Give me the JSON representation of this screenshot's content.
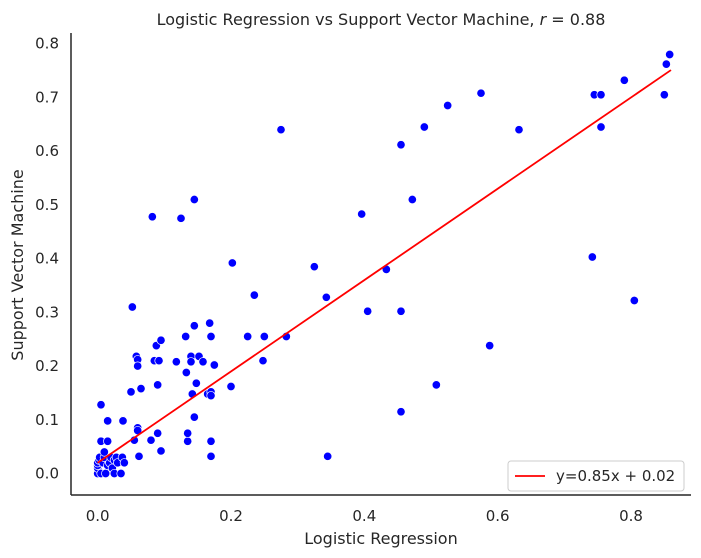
{
  "chart_data": {
    "type": "scatter",
    "title": "Logistic Regression vs Support Vector Machine, r = 0.88",
    "title_main": "Logistic Regression vs Support Vector Machine,",
    "title_stat_symbol": "r",
    "title_stat_value": " = 0.88",
    "xlabel": "Logistic Regression",
    "ylabel": "Support Vector Machine",
    "xlim": [
      -0.04,
      0.89
    ],
    "ylim": [
      -0.04,
      0.82
    ],
    "xticks": [
      0.0,
      0.2,
      0.4,
      0.6,
      0.8
    ],
    "xtick_labels": [
      "0.0",
      "0.2",
      "0.4",
      "0.6",
      "0.8"
    ],
    "yticks": [
      0.0,
      0.1,
      0.2,
      0.3,
      0.4,
      0.5,
      0.6,
      0.7,
      0.8
    ],
    "ytick_labels": [
      "0.0",
      "0.1",
      "0.2",
      "0.3",
      "0.4",
      "0.5",
      "0.6",
      "0.7",
      "0.8"
    ],
    "grid": false,
    "legend_position": "bottom-right",
    "point_color": "#0000ff",
    "line_color": "#ff0000",
    "fit_line": {
      "label": "y=0.85x + 0.02",
      "slope": 0.85,
      "intercept": 0.02,
      "x_range": [
        0.0,
        0.86
      ]
    },
    "points": [
      [
        0.0,
        0.0
      ],
      [
        0.0,
        0.01
      ],
      [
        0.0,
        0.015
      ],
      [
        0.0,
        0.02
      ],
      [
        0.002,
        0.025
      ],
      [
        0.003,
        0.03
      ],
      [
        0.005,
        0.0
      ],
      [
        0.005,
        0.06
      ],
      [
        0.005,
        0.128
      ],
      [
        0.008,
        0.02
      ],
      [
        0.01,
        0.03
      ],
      [
        0.01,
        0.04
      ],
      [
        0.012,
        0.0
      ],
      [
        0.015,
        0.015
      ],
      [
        0.015,
        0.06
      ],
      [
        0.015,
        0.098
      ],
      [
        0.018,
        0.02
      ],
      [
        0.02,
        0.03
      ],
      [
        0.022,
        0.01
      ],
      [
        0.025,
        0.025
      ],
      [
        0.025,
        0.0
      ],
      [
        0.028,
        0.03
      ],
      [
        0.03,
        0.02
      ],
      [
        0.035,
        0.0
      ],
      [
        0.037,
        0.03
      ],
      [
        0.038,
        0.098
      ],
      [
        0.04,
        0.02
      ],
      [
        0.05,
        0.152
      ],
      [
        0.052,
        0.31
      ],
      [
        0.055,
        0.062
      ],
      [
        0.058,
        0.218
      ],
      [
        0.06,
        0.212
      ],
      [
        0.06,
        0.2
      ],
      [
        0.06,
        0.085
      ],
      [
        0.06,
        0.08
      ],
      [
        0.062,
        0.032
      ],
      [
        0.065,
        0.158
      ],
      [
        0.08,
        0.062
      ],
      [
        0.082,
        0.478
      ],
      [
        0.085,
        0.21
      ],
      [
        0.088,
        0.238
      ],
      [
        0.09,
        0.165
      ],
      [
        0.09,
        0.075
      ],
      [
        0.092,
        0.21
      ],
      [
        0.095,
        0.248
      ],
      [
        0.095,
        0.042
      ],
      [
        0.118,
        0.208
      ],
      [
        0.125,
        0.475
      ],
      [
        0.132,
        0.255
      ],
      [
        0.133,
        0.188
      ],
      [
        0.135,
        0.06
      ],
      [
        0.135,
        0.075
      ],
      [
        0.14,
        0.218
      ],
      [
        0.14,
        0.208
      ],
      [
        0.142,
        0.148
      ],
      [
        0.145,
        0.105
      ],
      [
        0.145,
        0.275
      ],
      [
        0.145,
        0.51
      ],
      [
        0.148,
        0.168
      ],
      [
        0.152,
        0.218
      ],
      [
        0.158,
        0.208
      ],
      [
        0.165,
        0.148
      ],
      [
        0.168,
        0.28
      ],
      [
        0.17,
        0.255
      ],
      [
        0.17,
        0.152
      ],
      [
        0.17,
        0.145
      ],
      [
        0.17,
        0.06
      ],
      [
        0.17,
        0.032
      ],
      [
        0.175,
        0.202
      ],
      [
        0.2,
        0.162
      ],
      [
        0.202,
        0.392
      ],
      [
        0.225,
        0.255
      ],
      [
        0.235,
        0.332
      ],
      [
        0.248,
        0.21
      ],
      [
        0.25,
        0.255
      ],
      [
        0.275,
        0.64
      ],
      [
        0.283,
        0.255
      ],
      [
        0.325,
        0.385
      ],
      [
        0.343,
        0.328
      ],
      [
        0.345,
        0.032
      ],
      [
        0.396,
        0.483
      ],
      [
        0.405,
        0.302
      ],
      [
        0.433,
        0.38
      ],
      [
        0.455,
        0.612
      ],
      [
        0.455,
        0.302
      ],
      [
        0.455,
        0.115
      ],
      [
        0.472,
        0.51
      ],
      [
        0.49,
        0.645
      ],
      [
        0.508,
        0.165
      ],
      [
        0.525,
        0.685
      ],
      [
        0.575,
        0.708
      ],
      [
        0.588,
        0.238
      ],
      [
        0.632,
        0.64
      ],
      [
        0.742,
        0.403
      ],
      [
        0.745,
        0.705
      ],
      [
        0.755,
        0.705
      ],
      [
        0.755,
        0.645
      ],
      [
        0.79,
        0.732
      ],
      [
        0.805,
        0.322
      ],
      [
        0.85,
        0.705
      ],
      [
        0.853,
        0.762
      ],
      [
        0.858,
        0.78
      ]
    ]
  }
}
